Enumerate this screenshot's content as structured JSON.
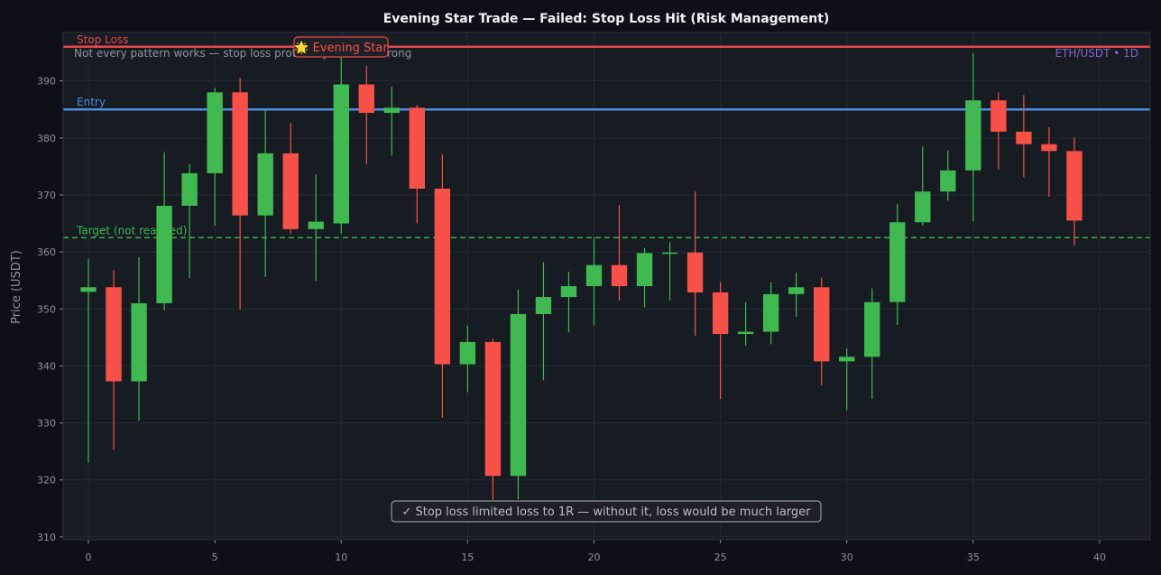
{
  "chart_data": {
    "type": "candlestick",
    "title": "Evening Star Trade — Failed: Stop Loss Hit (Risk Management)",
    "ylabel": "Price (USDT)",
    "xlim": [
      -1,
      42
    ],
    "ylim": [
      309.5,
      398.5
    ],
    "x_ticks": [
      0,
      5,
      10,
      15,
      20,
      25,
      30,
      35,
      40
    ],
    "y_ticks": [
      310,
      320,
      330,
      340,
      350,
      360,
      370,
      380,
      390
    ],
    "grid": true,
    "symbol_label": "ETH/USDT • 1D",
    "subtitle_note": "Not every pattern works — stop loss protects you when wrong",
    "pattern_label": "🌟 Evening Star",
    "bottom_note": "✓ Stop loss limited loss to 1R — without it, loss would be much larger",
    "levels": [
      {
        "name": "Stop Loss",
        "value": 396.0,
        "style": "solid",
        "color": "#e5484d"
      },
      {
        "name": "Entry",
        "value": 385.0,
        "style": "solid",
        "color": "#4c8fe0"
      },
      {
        "name": "Target (not reached)",
        "value": 362.5,
        "style": "dashed",
        "color": "#3fb950"
      }
    ],
    "colors": {
      "up": "#3fb950",
      "down": "#f8514a",
      "background": "#171b22",
      "grid": "#232833"
    },
    "candles": [
      {
        "x": 0,
        "open": 353.0,
        "high": 358.8,
        "low": 323.0,
        "close": 353.8
      },
      {
        "x": 1,
        "open": 353.8,
        "high": 356.8,
        "low": 325.3,
        "close": 337.3
      },
      {
        "x": 2,
        "open": 337.3,
        "high": 359.1,
        "low": 330.4,
        "close": 351.0
      },
      {
        "x": 3,
        "open": 351.0,
        "high": 377.5,
        "low": 349.8,
        "close": 368.1
      },
      {
        "x": 4,
        "open": 368.1,
        "high": 375.4,
        "low": 355.4,
        "close": 373.8
      },
      {
        "x": 5,
        "open": 373.8,
        "high": 388.8,
        "low": 364.6,
        "close": 388.0
      },
      {
        "x": 6,
        "open": 388.0,
        "high": 390.5,
        "low": 349.9,
        "close": 366.4
      },
      {
        "x": 7,
        "open": 366.4,
        "high": 385.1,
        "low": 355.6,
        "close": 377.3
      },
      {
        "x": 8,
        "open": 377.3,
        "high": 382.6,
        "low": 363.2,
        "close": 364.0
      },
      {
        "x": 9,
        "open": 364.0,
        "high": 373.6,
        "low": 354.9,
        "close": 365.3
      },
      {
        "x": 10,
        "open": 365.0,
        "high": 394.8,
        "low": 363.2,
        "close": 389.4
      },
      {
        "x": 11,
        "open": 389.4,
        "high": 392.7,
        "low": 375.4,
        "close": 384.4
      },
      {
        "x": 12,
        "open": 384.4,
        "high": 389.0,
        "low": 376.9,
        "close": 385.3
      },
      {
        "x": 13,
        "open": 385.3,
        "high": 385.8,
        "low": 365.0,
        "close": 371.1
      },
      {
        "x": 14,
        "open": 371.1,
        "high": 377.1,
        "low": 330.9,
        "close": 340.3
      },
      {
        "x": 15,
        "open": 340.3,
        "high": 347.1,
        "low": 335.4,
        "close": 344.2
      },
      {
        "x": 16,
        "open": 344.2,
        "high": 344.8,
        "low": 316.5,
        "close": 320.7
      },
      {
        "x": 17,
        "open": 320.7,
        "high": 353.4,
        "low": 316.6,
        "close": 349.1
      },
      {
        "x": 18,
        "open": 349.1,
        "high": 358.2,
        "low": 337.5,
        "close": 352.1
      },
      {
        "x": 19,
        "open": 352.1,
        "high": 356.5,
        "low": 345.9,
        "close": 354.0
      },
      {
        "x": 20,
        "open": 354.0,
        "high": 362.6,
        "low": 347.1,
        "close": 357.7
      },
      {
        "x": 21,
        "open": 357.7,
        "high": 368.2,
        "low": 351.5,
        "close": 354.0
      },
      {
        "x": 22,
        "open": 354.0,
        "high": 360.7,
        "low": 350.3,
        "close": 359.8
      },
      {
        "x": 23,
        "open": 359.8,
        "high": 361.7,
        "low": 351.5,
        "close": 359.9
      },
      {
        "x": 24,
        "open": 359.9,
        "high": 370.6,
        "low": 345.3,
        "close": 352.9
      },
      {
        "x": 25,
        "open": 352.9,
        "high": 354.7,
        "low": 334.2,
        "close": 345.6
      },
      {
        "x": 26,
        "open": 345.6,
        "high": 351.2,
        "low": 343.6,
        "close": 346.0
      },
      {
        "x": 27,
        "open": 346.0,
        "high": 354.7,
        "low": 343.8,
        "close": 352.6
      },
      {
        "x": 28,
        "open": 352.6,
        "high": 356.4,
        "low": 348.6,
        "close": 353.8
      },
      {
        "x": 29,
        "open": 353.8,
        "high": 355.5,
        "low": 336.6,
        "close": 340.8
      },
      {
        "x": 30,
        "open": 340.8,
        "high": 343.1,
        "low": 332.2,
        "close": 341.6
      },
      {
        "x": 31,
        "open": 341.6,
        "high": 353.6,
        "low": 334.2,
        "close": 351.2
      },
      {
        "x": 32,
        "open": 351.2,
        "high": 368.4,
        "low": 347.2,
        "close": 365.2
      },
      {
        "x": 33,
        "open": 365.2,
        "high": 378.5,
        "low": 364.6,
        "close": 370.6
      },
      {
        "x": 34,
        "open": 370.6,
        "high": 377.8,
        "low": 369.0,
        "close": 374.3
      },
      {
        "x": 35,
        "open": 374.3,
        "high": 394.9,
        "low": 365.4,
        "close": 386.6
      },
      {
        "x": 36,
        "open": 386.6,
        "high": 388.0,
        "low": 374.5,
        "close": 381.1
      },
      {
        "x": 37,
        "open": 381.1,
        "high": 387.5,
        "low": 373.1,
        "close": 378.9
      },
      {
        "x": 38,
        "open": 378.9,
        "high": 381.9,
        "low": 369.7,
        "close": 377.7
      },
      {
        "x": 39,
        "open": 377.7,
        "high": 380.1,
        "low": 361.1,
        "close": 365.5
      }
    ]
  }
}
